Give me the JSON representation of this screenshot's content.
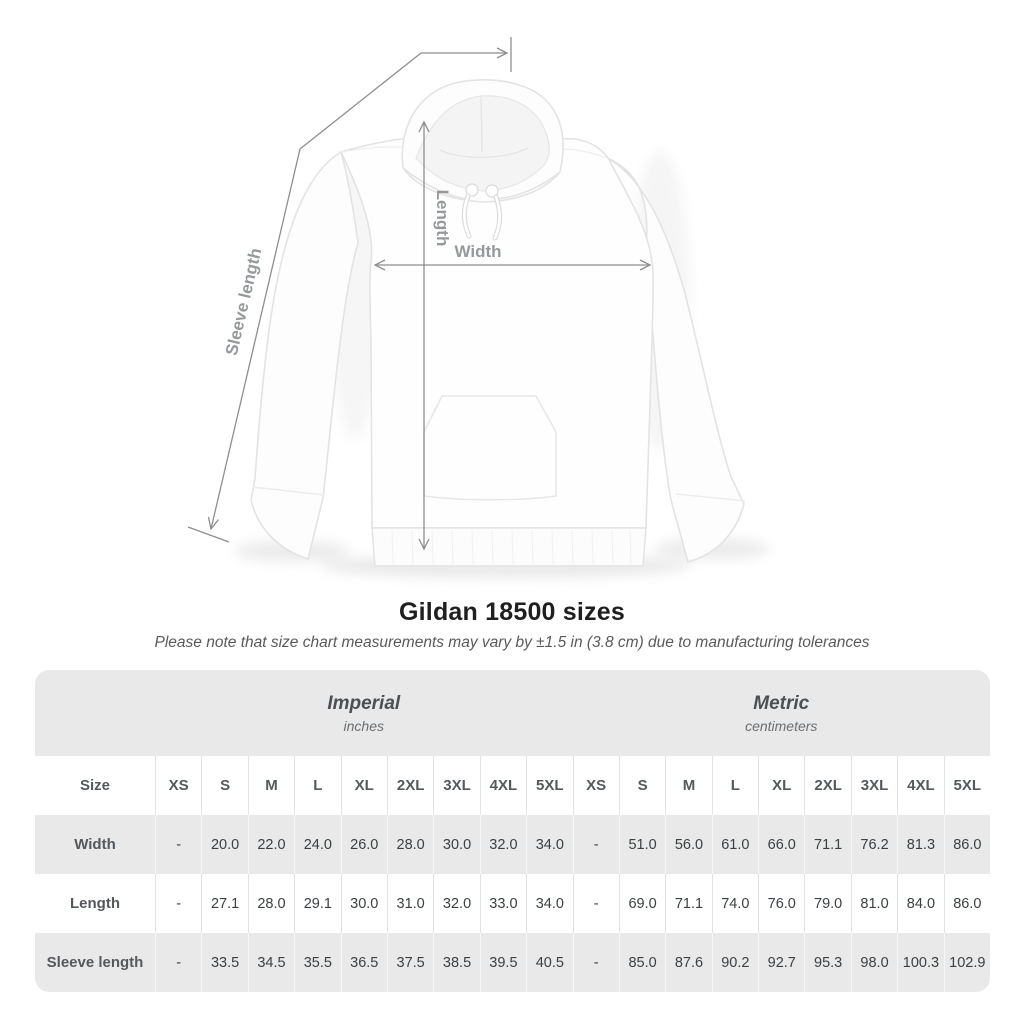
{
  "title": "Gildan 18500 sizes",
  "subtitle": "Please note that size chart measurements may vary by ±1.5 in (3.8 cm) due to manufacturing tolerances",
  "diagram": {
    "annotations": {
      "sleeve_length_label": "Sleeve length",
      "length_label": "Length",
      "width_label": "Width"
    },
    "line_color": "#8e8e8e",
    "label_color": "#96999b"
  },
  "chart_data": {
    "type": "table",
    "title": "Gildan 18500 sizes",
    "corner_header": "Size",
    "sections": [
      {
        "label": "Imperial",
        "unit": "inches"
      },
      {
        "label": "Metric",
        "unit": "centimeters"
      }
    ],
    "sizes": [
      "XS",
      "S",
      "M",
      "L",
      "XL",
      "2XL",
      "3XL",
      "4XL",
      "5XL"
    ],
    "rows": [
      {
        "label": "Width",
        "imperial": [
          "-",
          "20.0",
          "22.0",
          "24.0",
          "26.0",
          "28.0",
          "30.0",
          "32.0",
          "34.0"
        ],
        "metric": [
          "-",
          "51.0",
          "56.0",
          "61.0",
          "66.0",
          "71.1",
          "76.2",
          "81.3",
          "86.0"
        ]
      },
      {
        "label": "Length",
        "imperial": [
          "-",
          "27.1",
          "28.0",
          "29.1",
          "30.0",
          "31.0",
          "32.0",
          "33.0",
          "34.0"
        ],
        "metric": [
          "-",
          "69.0",
          "71.1",
          "74.0",
          "76.0",
          "79.0",
          "81.0",
          "84.0",
          "86.0"
        ]
      },
      {
        "label": "Sleeve length",
        "imperial": [
          "-",
          "33.5",
          "34.5",
          "35.5",
          "36.5",
          "37.5",
          "38.5",
          "39.5",
          "40.5"
        ],
        "metric": [
          "-",
          "85.0",
          "87.6",
          "90.2",
          "92.7",
          "95.3",
          "98.0",
          "100.3",
          "102.9"
        ]
      }
    ]
  },
  "colors": {
    "table_band": "#e9e9e9",
    "row_alt": "#e9e9e9",
    "row_white": "#ffffff",
    "header_text": "#55595c",
    "value_text": "#3c4043",
    "title_text": "#1f1f1f",
    "subtitle_text": "#5a5a5a"
  }
}
